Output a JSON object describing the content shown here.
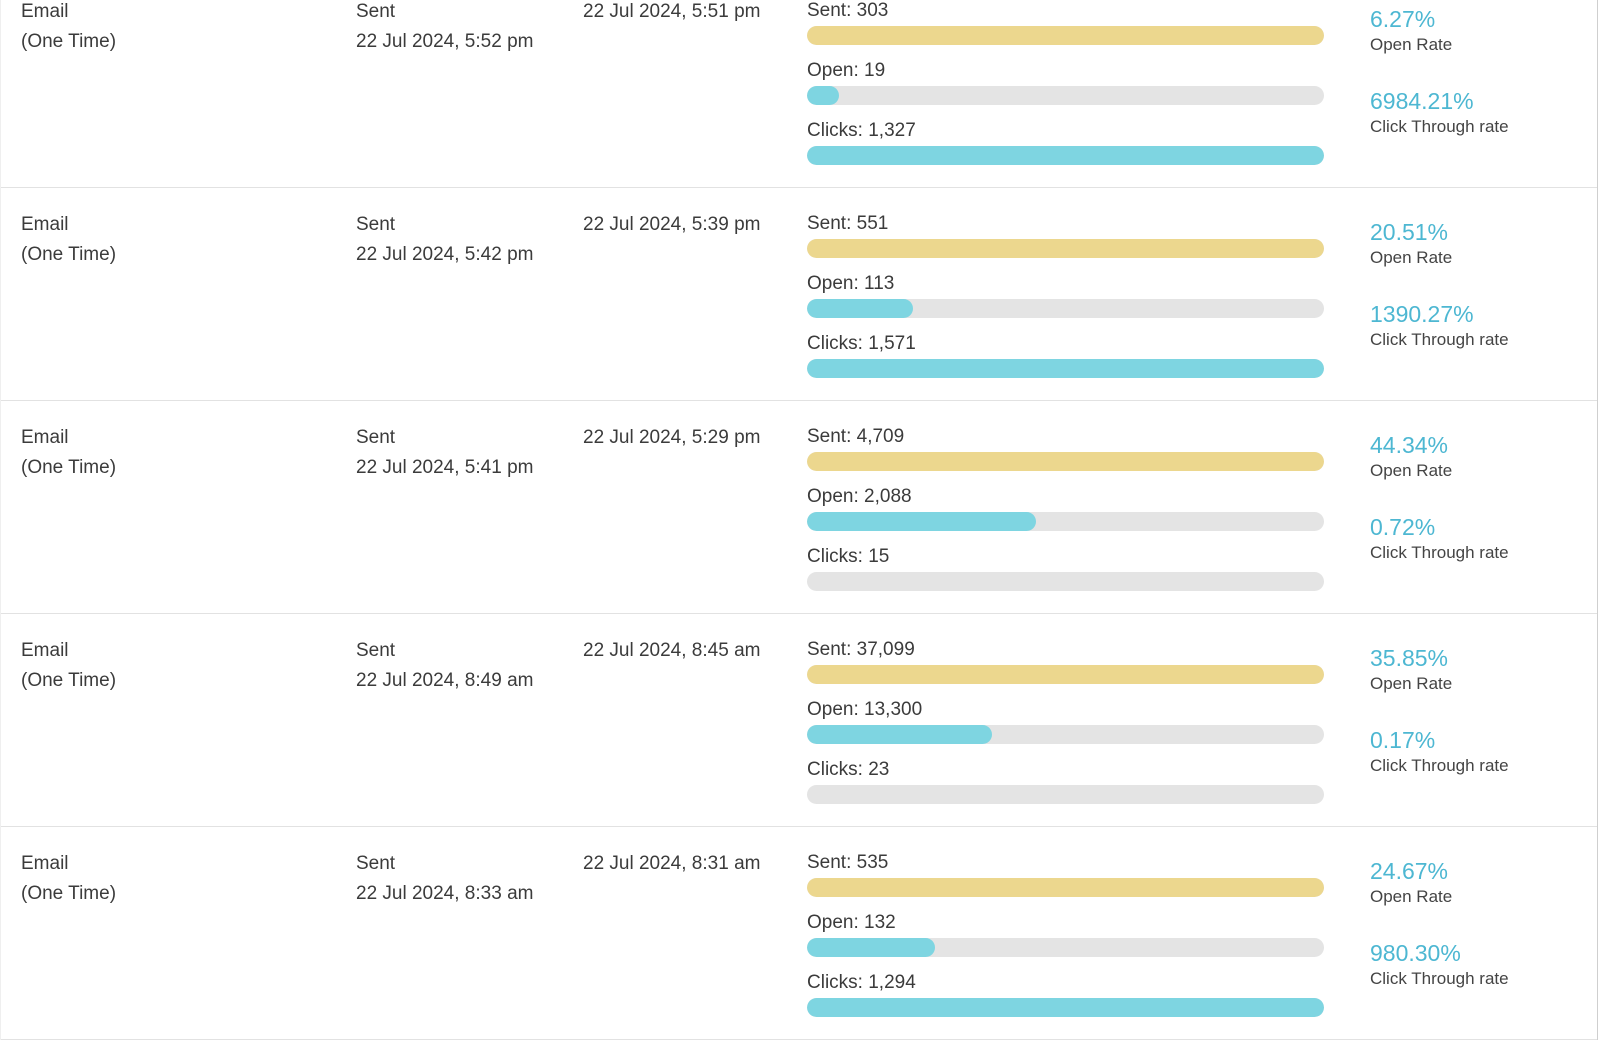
{
  "labels": {
    "open_rate": "Open Rate",
    "click_through_rate": "Click Through rate"
  },
  "colors": {
    "accent_teal_text": "#4db7d2",
    "bar_yellow": "#ecd78e",
    "bar_teal": "#7ed5e1",
    "bar_track_gray": "#e4e4e4",
    "text_dark": "#3b3b3b",
    "divider": "#e2e2e2"
  },
  "rows": [
    {
      "type_line1": "Email",
      "type_line2": "(One Time)",
      "sent_label": "Sent",
      "sent_date": "22 Jul 2024, 5:52 pm",
      "delivered_date": "22 Jul 2024, 5:51 pm",
      "bars": {
        "sent": {
          "label": "Sent: 303",
          "value": 303,
          "fill_pct": 100
        },
        "open": {
          "label": "Open: 19",
          "value": 19,
          "fill_pct": 6.27
        },
        "clicks": {
          "label": "Clicks: 1,327",
          "value": 1327,
          "fill_pct": 100
        }
      },
      "open_rate": "6.27%",
      "click_through_rate": "6984.21%"
    },
    {
      "type_line1": "Email",
      "type_line2": "(One Time)",
      "sent_label": "Sent",
      "sent_date": "22 Jul 2024, 5:42 pm",
      "delivered_date": "22 Jul 2024, 5:39 pm",
      "bars": {
        "sent": {
          "label": "Sent: 551",
          "value": 551,
          "fill_pct": 100
        },
        "open": {
          "label": "Open: 113",
          "value": 113,
          "fill_pct": 20.51
        },
        "clicks": {
          "label": "Clicks: 1,571",
          "value": 1571,
          "fill_pct": 100
        }
      },
      "open_rate": "20.51%",
      "click_through_rate": "1390.27%"
    },
    {
      "type_line1": "Email",
      "type_line2": "(One Time)",
      "sent_label": "Sent",
      "sent_date": "22 Jul 2024, 5:41 pm",
      "delivered_date": "22 Jul 2024, 5:29 pm",
      "bars": {
        "sent": {
          "label": "Sent: 4,709",
          "value": 4709,
          "fill_pct": 100
        },
        "open": {
          "label": "Open: 2,088",
          "value": 2088,
          "fill_pct": 44.34
        },
        "clicks": {
          "label": "Clicks: 15",
          "value": 15,
          "fill_pct": 0
        }
      },
      "open_rate": "44.34%",
      "click_through_rate": "0.72%"
    },
    {
      "type_line1": "Email",
      "type_line2": "(One Time)",
      "sent_label": "Sent",
      "sent_date": "22 Jul 2024, 8:49 am",
      "delivered_date": "22 Jul 2024, 8:45 am",
      "bars": {
        "sent": {
          "label": "Sent: 37,099",
          "value": 37099,
          "fill_pct": 100
        },
        "open": {
          "label": "Open: 13,300",
          "value": 13300,
          "fill_pct": 35.85
        },
        "clicks": {
          "label": "Clicks: 23",
          "value": 23,
          "fill_pct": 0
        }
      },
      "open_rate": "35.85%",
      "click_through_rate": "0.17%"
    },
    {
      "type_line1": "Email",
      "type_line2": "(One Time)",
      "sent_label": "Sent",
      "sent_date": "22 Jul 2024, 8:33 am",
      "delivered_date": "22 Jul 2024, 8:31 am",
      "bars": {
        "sent": {
          "label": "Sent: 535",
          "value": 535,
          "fill_pct": 100
        },
        "open": {
          "label": "Open: 132",
          "value": 132,
          "fill_pct": 24.67
        },
        "clicks": {
          "label": "Clicks: 1,294",
          "value": 1294,
          "fill_pct": 100
        }
      },
      "open_rate": "24.67%",
      "click_through_rate": "980.30%"
    }
  ]
}
